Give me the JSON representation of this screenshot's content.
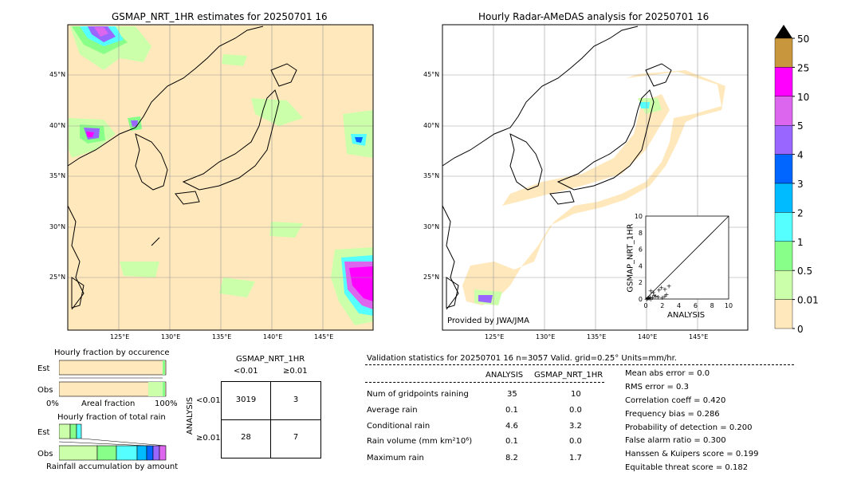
{
  "panels": {
    "left_title": "GSMAP_NRT_1HR estimates for 20250701 16",
    "right_title": "Hourly Radar-AMeDAS analysis for 20250701 16",
    "provided_by": "Provided by JWA/JMA",
    "lat_labels": [
      "45°N",
      "40°N",
      "35°N",
      "30°N",
      "25°N"
    ],
    "lon_labels": [
      "125°E",
      "130°E",
      "135°E",
      "140°E",
      "145°E"
    ]
  },
  "colorbar": {
    "labels": [
      "50",
      "25",
      "10",
      "5",
      "4",
      "3",
      "2",
      "1",
      "0.5",
      "0.01",
      "0"
    ],
    "colors": [
      "#c8963c",
      "#ff00ff",
      "#dd66ee",
      "#9966ff",
      "#0066ff",
      "#00bbff",
      "#55ffff",
      "#88ff88",
      "#ccffaa",
      "#ffe8bb"
    ]
  },
  "scatter_inset": {
    "xlabel": "ANALYSIS",
    "ylabel": "GSMAP_NRT_1HR",
    "ticks": [
      "0",
      "2",
      "4",
      "6",
      "8",
      "10"
    ],
    "top_tick": "10"
  },
  "occurrence": {
    "title": "Hourly fraction by occurence",
    "rows": [
      "Est",
      "Obs"
    ],
    "axis_left": "0%",
    "axis_mid": "Areal fraction",
    "axis_right": "100%"
  },
  "total_rain": {
    "title": "Hourly fraction of total rain",
    "rows": [
      "Est",
      "Obs"
    ],
    "footer": "Rainfall accumulation by amount"
  },
  "contingency": {
    "title": "GSMAP_NRT_1HR",
    "col_lt": "<0.01",
    "col_ge": "≥0.01",
    "row_axis": "ANALYSIS",
    "row_lt": "<0.01",
    "row_ge": "≥0.01",
    "cells": [
      "3019",
      "3",
      "28",
      "7"
    ]
  },
  "validation": {
    "header": "Validation statistics for 20250701 16  n=3057 Valid. grid=0.25° Units=mm/hr.",
    "col_analysis": "ANALYSIS",
    "col_gsmap": "GSMAP_NRT_1HR",
    "rows": [
      {
        "label": "Num of gridpoints raining",
        "analysis": "35",
        "gsmap": "10"
      },
      {
        "label": "Average rain",
        "analysis": "0.1",
        "gsmap": "0.0"
      },
      {
        "label": "Conditional rain",
        "analysis": "4.6",
        "gsmap": "3.2"
      },
      {
        "label": "Rain volume (mm km²10⁶)",
        "analysis": "0.1",
        "gsmap": "0.0"
      },
      {
        "label": "Maximum rain",
        "analysis": "8.2",
        "gsmap": "1.7"
      }
    ],
    "scores": [
      "Mean abs error =    0.0",
      "RMS error =    0.3",
      "Correlation coeff =  0.420",
      "Frequency bias =  0.286",
      "Probability of detection =  0.200",
      "False alarm ratio =  0.300",
      "Hanssen & Kuipers score =  0.199",
      "Equitable threat score =  0.182"
    ]
  },
  "chart_data": [
    {
      "type": "scatter",
      "title": "",
      "xlabel": "ANALYSIS",
      "ylabel": "GSMAP_NRT_1HR",
      "xlim": [
        0,
        10
      ],
      "ylim": [
        0,
        10
      ],
      "x": [
        0.1,
        0.2,
        0.3,
        0.4,
        0.5,
        0.6,
        0.8,
        1.0,
        1.2,
        1.5,
        2.0,
        0.6,
        1.6,
        2.3,
        2.5,
        1.9,
        2.8,
        0.9,
        2.3
      ],
      "y": [
        0.0,
        0.1,
        0.2,
        0.1,
        0.3,
        0.0,
        0.2,
        0.5,
        0.4,
        0.3,
        0.2,
        1.0,
        1.1,
        1.2,
        0.6,
        1.4,
        1.6,
        0.8,
        0.4
      ]
    },
    {
      "type": "bar",
      "title": "Hourly fraction by occurence",
      "categories": [
        "Est",
        "Obs"
      ],
      "values": [
        0.985,
        0.955
      ]
    }
  ]
}
